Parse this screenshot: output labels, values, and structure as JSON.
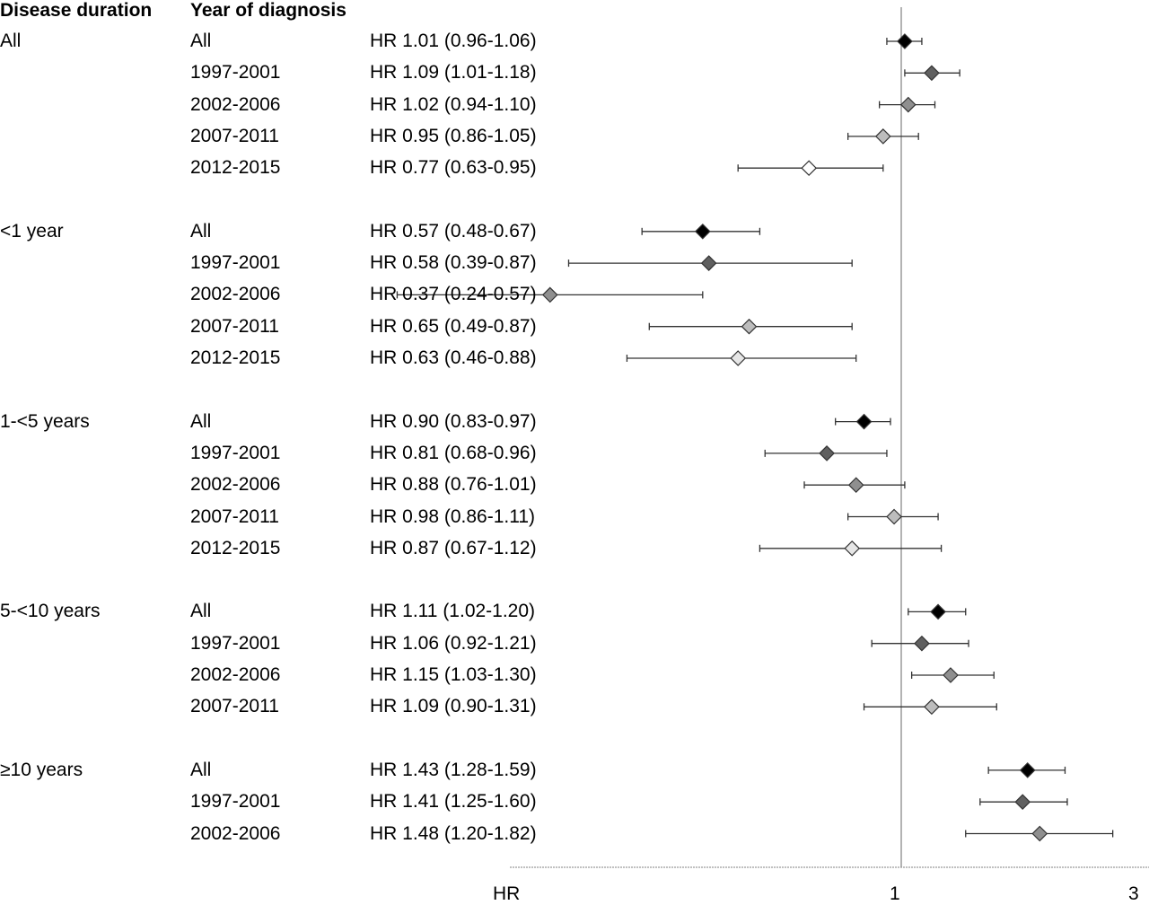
{
  "headers": {
    "duration": "Disease duration",
    "year": "Year of diagnosis"
  },
  "chart_data": {
    "type": "forest",
    "xlabel": "HR",
    "x_ticks": [
      "1",
      "3"
    ],
    "reference_line": 1,
    "groups": [
      {
        "duration": "All",
        "rows": [
          {
            "year": "All",
            "label": "HR 1.01 (0.96-1.06)",
            "hr": 1.01,
            "lo": 0.96,
            "hi": 1.06,
            "color": "#000000"
          },
          {
            "year": "1997-2001",
            "label": "HR 1.09 (1.01-1.18)",
            "hr": 1.09,
            "lo": 1.01,
            "hi": 1.18,
            "color": "#606060"
          },
          {
            "year": "2002-2006",
            "label": "HR 1.02 (0.94-1.10)",
            "hr": 1.02,
            "lo": 0.94,
            "hi": 1.1,
            "color": "#8f8f8f"
          },
          {
            "year": "2007-2011",
            "label": "HR 0.95 (0.86-1.05)",
            "hr": 0.95,
            "lo": 0.86,
            "hi": 1.05,
            "color": "#bdbdbd"
          },
          {
            "year": "2012-2015",
            "label": "HR 0.77 (0.63-0.95)",
            "hr": 0.77,
            "lo": 0.63,
            "hi": 0.95,
            "color": "#ffffff"
          }
        ]
      },
      {
        "duration": "<1 year",
        "rows": [
          {
            "year": "All",
            "label": "HR 0.57 (0.48-0.67)",
            "hr": 0.57,
            "lo": 0.48,
            "hi": 0.67,
            "color": "#000000"
          },
          {
            "year": "1997-2001",
            "label": "HR 0.58 (0.39-0.87)",
            "hr": 0.58,
            "lo": 0.39,
            "hi": 0.87,
            "color": "#606060"
          },
          {
            "year": "2002-2006",
            "label": "HR 0.37 (0.24-0.57)",
            "hr": 0.37,
            "lo": 0.24,
            "hi": 0.57,
            "color": "#8f8f8f"
          },
          {
            "year": "2007-2011",
            "label": "HR 0.65 (0.49-0.87)",
            "hr": 0.65,
            "lo": 0.49,
            "hi": 0.87,
            "color": "#bdbdbd"
          },
          {
            "year": "2012-2015",
            "label": "HR 0.63 (0.46-0.88)",
            "hr": 0.63,
            "lo": 0.46,
            "hi": 0.88,
            "color": "#e6e6e6"
          }
        ]
      },
      {
        "duration": "1-<5 years",
        "rows": [
          {
            "year": "All",
            "label": "HR 0.90 (0.83-0.97)",
            "hr": 0.9,
            "lo": 0.83,
            "hi": 0.97,
            "color": "#000000"
          },
          {
            "year": "1997-2001",
            "label": "HR 0.81 (0.68-0.96)",
            "hr": 0.81,
            "lo": 0.68,
            "hi": 0.96,
            "color": "#606060"
          },
          {
            "year": "2002-2006",
            "label": "HR 0.88 (0.76-1.01)",
            "hr": 0.88,
            "lo": 0.76,
            "hi": 1.01,
            "color": "#8f8f8f"
          },
          {
            "year": "2007-2011",
            "label": "HR 0.98 (0.86-1.11)",
            "hr": 0.98,
            "lo": 0.86,
            "hi": 1.11,
            "color": "#bdbdbd"
          },
          {
            "year": "2012-2015",
            "label": "HR 0.87 (0.67-1.12)",
            "hr": 0.87,
            "lo": 0.67,
            "hi": 1.12,
            "color": "#e6e6e6"
          }
        ]
      },
      {
        "duration": "5-<10 years",
        "rows": [
          {
            "year": "All",
            "label": "HR 1.11 (1.02-1.20)",
            "hr": 1.11,
            "lo": 1.02,
            "hi": 1.2,
            "color": "#000000"
          },
          {
            "year": "1997-2001",
            "label": "HR 1.06 (0.92-1.21)",
            "hr": 1.06,
            "lo": 0.92,
            "hi": 1.21,
            "color": "#606060"
          },
          {
            "year": "2002-2006",
            "label": "HR 1.15 (1.03-1.30)",
            "hr": 1.15,
            "lo": 1.03,
            "hi": 1.3,
            "color": "#8f8f8f"
          },
          {
            "year": "2007-2011",
            "label": "HR 1.09 (0.90-1.31)",
            "hr": 1.09,
            "lo": 0.9,
            "hi": 1.31,
            "color": "#bdbdbd"
          }
        ]
      },
      {
        "duration": "≥10 years",
        "rows": [
          {
            "year": "All",
            "label": "HR 1.43 (1.28-1.59)",
            "hr": 1.43,
            "lo": 1.28,
            "hi": 1.59,
            "color": "#000000"
          },
          {
            "year": "1997-2001",
            "label": "HR 1.41 (1.25-1.60)",
            "hr": 1.41,
            "lo": 1.25,
            "hi": 1.6,
            "color": "#606060"
          },
          {
            "year": "2002-2006",
            "label": "HR 1.48 (1.20-1.82)",
            "hr": 1.48,
            "lo": 1.2,
            "hi": 1.82,
            "color": "#8f8f8f"
          }
        ]
      }
    ]
  }
}
